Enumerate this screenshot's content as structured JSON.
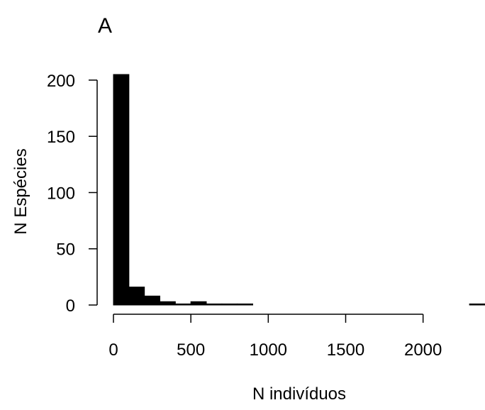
{
  "chart_data": {
    "type": "bar",
    "panel_label": "A",
    "title": "",
    "xlabel": "N indivíduos",
    "ylabel": "N Espécies",
    "bin_width": 100,
    "bins": [
      {
        "x0": 0,
        "x1": 100,
        "y": 205
      },
      {
        "x0": 100,
        "x1": 200,
        "y": 16
      },
      {
        "x0": 200,
        "x1": 300,
        "y": 8
      },
      {
        "x0": 300,
        "x1": 400,
        "y": 3
      },
      {
        "x0": 400,
        "x1": 500,
        "y": 1
      },
      {
        "x0": 500,
        "x1": 600,
        "y": 3
      },
      {
        "x0": 600,
        "x1": 700,
        "y": 1
      },
      {
        "x0": 700,
        "x1": 800,
        "y": 1
      },
      {
        "x0": 800,
        "x1": 900,
        "y": 1
      },
      {
        "x0": 900,
        "x1": 1000,
        "y": 0
      },
      {
        "x0": 1000,
        "x1": 1100,
        "y": 0
      },
      {
        "x0": 1100,
        "x1": 1200,
        "y": 0
      },
      {
        "x0": 1200,
        "x1": 1300,
        "y": 0
      },
      {
        "x0": 1300,
        "x1": 1400,
        "y": 0
      },
      {
        "x0": 1400,
        "x1": 1500,
        "y": 0
      },
      {
        "x0": 1500,
        "x1": 1600,
        "y": 0
      },
      {
        "x0": 1600,
        "x1": 1700,
        "y": 0
      },
      {
        "x0": 1700,
        "x1": 1800,
        "y": 0
      },
      {
        "x0": 1800,
        "x1": 1900,
        "y": 0
      },
      {
        "x0": 1900,
        "x1": 2000,
        "y": 0
      },
      {
        "x0": 2000,
        "x1": 2100,
        "y": 0
      },
      {
        "x0": 2100,
        "x1": 2200,
        "y": 0
      },
      {
        "x0": 2200,
        "x1": 2300,
        "y": 0
      },
      {
        "x0": 2300,
        "x1": 2400,
        "y": 1
      }
    ],
    "x_ticks": [
      {
        "value": 0,
        "label": "0"
      },
      {
        "value": 500,
        "label": "500"
      },
      {
        "value": 1000,
        "label": "1000"
      },
      {
        "value": 1500,
        "label": "1500"
      },
      {
        "value": 2000,
        "label": "2000"
      }
    ],
    "y_ticks": [
      {
        "value": 0,
        "label": "0"
      },
      {
        "value": 50,
        "label": "50"
      },
      {
        "value": 100,
        "label": "100"
      },
      {
        "value": 150,
        "label": "150"
      },
      {
        "value": 200,
        "label": "200"
      }
    ],
    "xlim": [
      0,
      2400
    ],
    "ylim": [
      0,
      205
    ],
    "grid": false,
    "legend": "none",
    "bar_color": "#000000",
    "bar_edge_color": "#000000"
  }
}
